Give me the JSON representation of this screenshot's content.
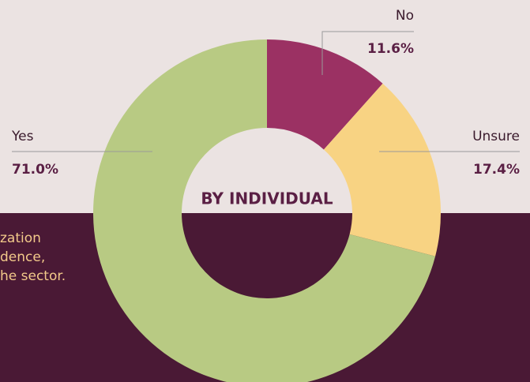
{
  "chart_data": {
    "type": "pie",
    "donut": true,
    "title": "BY INDIVIDUAL",
    "categories": [
      "No",
      "Unsure",
      "Yes"
    ],
    "values": [
      11.6,
      17.4,
      71.0
    ],
    "value_labels": [
      "11.6%",
      "17.4%",
      "71.0%"
    ],
    "colors": [
      "#9b3163",
      "#f8d383",
      "#b8ca83"
    ]
  },
  "side_text": [
    "zation",
    "dence,",
    "he sector."
  ]
}
